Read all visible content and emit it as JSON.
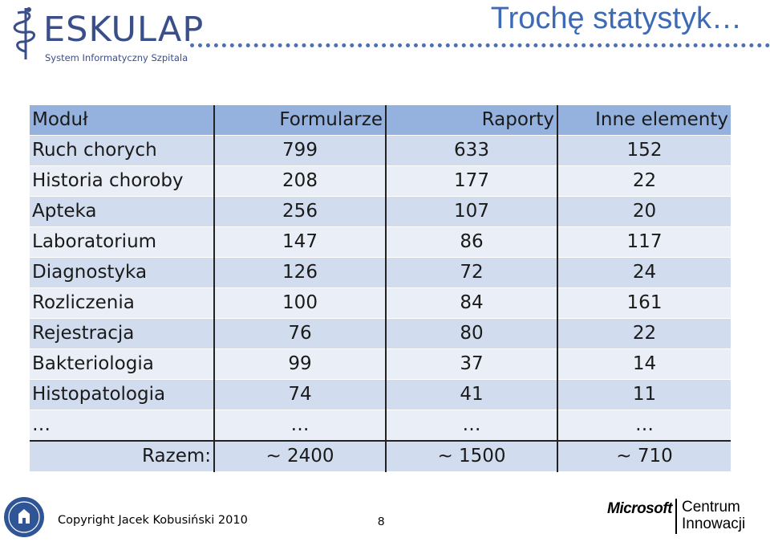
{
  "header": {
    "logo": {
      "name": "ESKULAP",
      "subtitle": "System Informatyczny Szpitala"
    },
    "title": "Trochę statystyk…"
  },
  "table": {
    "columns": [
      "Moduł",
      "Formularze",
      "Raporty",
      "Inne elementy"
    ],
    "rows": [
      [
        "Ruch chorych",
        "799",
        "633",
        "152"
      ],
      [
        "Historia choroby",
        "208",
        "177",
        "22"
      ],
      [
        "Apteka",
        "256",
        "107",
        "20"
      ],
      [
        "Laboratorium",
        "147",
        "86",
        "117"
      ],
      [
        "Diagnostyka",
        "126",
        "72",
        "24"
      ],
      [
        "Rozliczenia",
        "100",
        "84",
        "161"
      ],
      [
        "Rejestracja",
        "76",
        "80",
        "22"
      ],
      [
        "Bakteriologia",
        "99",
        "37",
        "14"
      ],
      [
        "Histopatologia",
        "74",
        "41",
        "11"
      ],
      [
        "…",
        "…",
        "…",
        "…"
      ]
    ],
    "totals": [
      "Razem:",
      "~ 2400",
      "~ 1500",
      "~ 710"
    ]
  },
  "footer": {
    "copyright": "Copyright Jacek Kobusiński 2010",
    "page_number": "8",
    "partner_logo": {
      "brand": "Microsoft",
      "line1": "Centrum",
      "line2": "Innowacji"
    }
  },
  "colors": {
    "title": "#3d6ab6",
    "header_row": "#95b2de",
    "row_odd": "#d1dcee",
    "row_even": "#eaeff7",
    "logo": "#3a4f8a"
  },
  "icons": [
    "caduceus-logo-icon",
    "university-seal-icon"
  ]
}
